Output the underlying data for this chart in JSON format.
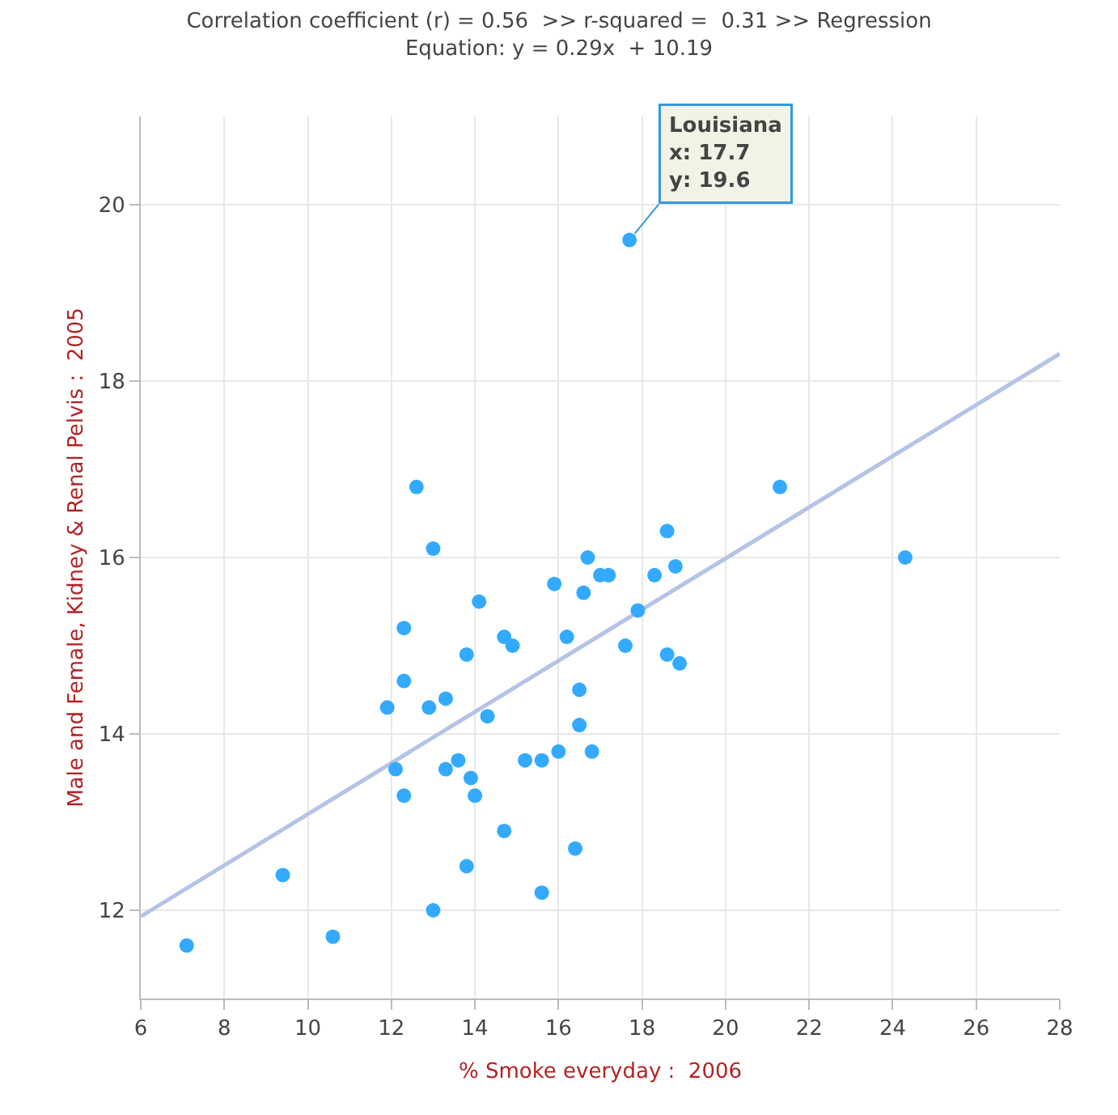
{
  "chart_data": {
    "type": "scatter",
    "title": "Correlation coefficient (r) = 0.56  >> r-squared =  0.31 >> Regression Equation: y = 0.29x  + 10.19",
    "xlabel": "% Smoke everyday :  2006",
    "ylabel": "Male and Female, Kidney & Renal Pelvis :  2005",
    "x": [
      7.1,
      9.4,
      10.6,
      13.0,
      12.6,
      13.0,
      12.3,
      12.3,
      11.9,
      12.1,
      12.3,
      12.9,
      13.3,
      13.3,
      13.6,
      13.8,
      13.9,
      14.0,
      14.1,
      14.3,
      13.8,
      14.7,
      14.9,
      14.7,
      15.2,
      15.6,
      15.6,
      15.9,
      16.0,
      16.2,
      16.4,
      16.5,
      16.5,
      16.6,
      16.7,
      16.8,
      17.0,
      17.2,
      17.6,
      17.9,
      18.3,
      18.6,
      18.6,
      18.8,
      18.9,
      21.3,
      24.3,
      17.7
    ],
    "series": [
      {
        "color": "#33aaff",
        "values": [
          11.6,
          12.4,
          11.7,
          12.0,
          16.8,
          16.1,
          15.2,
          14.6,
          14.3,
          13.6,
          13.3,
          14.3,
          14.4,
          13.6,
          13.7,
          14.9,
          13.5,
          13.3,
          15.5,
          14.2,
          12.5,
          15.1,
          15.0,
          12.9,
          13.7,
          13.7,
          12.2,
          15.7,
          13.8,
          15.1,
          12.7,
          14.5,
          14.1,
          15.6,
          16.0,
          13.8,
          15.8,
          15.8,
          15.0,
          15.4,
          15.8,
          16.3,
          14.9,
          15.9,
          14.8,
          16.8,
          16.0,
          19.6
        ]
      },
      {
        "type": "line",
        "color": "#b4c3e6",
        "x": [
          6,
          28
        ],
        "values": [
          11.93,
          18.31
        ],
        "marker": "none"
      }
    ],
    "annotations": [
      {
        "text": "Louisiana\nx: 17.7\ny: 19.6",
        "x": 17.7,
        "y": 19.6
      }
    ],
    "xlim": [
      6,
      28
    ],
    "xticks": [
      6,
      8,
      10,
      12,
      14,
      16,
      18,
      20,
      22,
      24,
      26,
      28
    ],
    "ylim": [
      11,
      21
    ],
    "yticks": [
      12,
      14,
      16,
      18,
      20
    ],
    "grid": true,
    "marker": "circle"
  }
}
